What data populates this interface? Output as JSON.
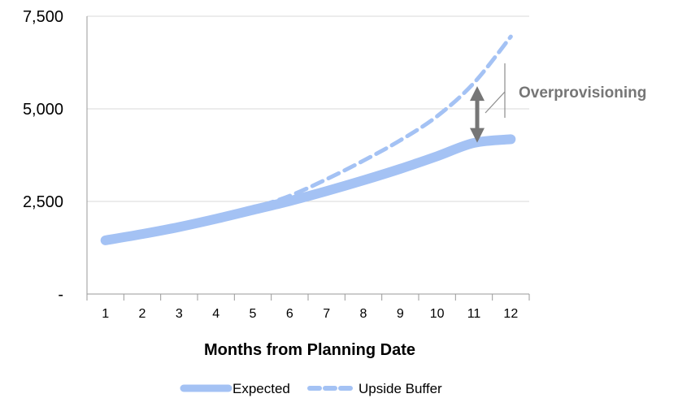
{
  "chart_data": {
    "type": "line",
    "title": "",
    "xlabel": "Months from Planning Date",
    "ylabel": "",
    "x": [
      1,
      2,
      3,
      4,
      5,
      6,
      7,
      8,
      9,
      10,
      11,
      12
    ],
    "x_tick_labels": [
      "1",
      "2",
      "3",
      "4",
      "5",
      "6",
      "7",
      "8",
      "9",
      "10",
      "11",
      "12"
    ],
    "ylim": [
      0,
      7500
    ],
    "y_ticks": [
      0,
      2500,
      5000,
      7500
    ],
    "y_tick_labels": [
      "-",
      "2,500",
      "5,000",
      "7,500"
    ],
    "grid": "horizontal",
    "legend_position": "bottom",
    "series": [
      {
        "name": "Expected",
        "style": "solid",
        "color": "#a4c2f4",
        "values": [
          1450,
          1620,
          1810,
          2030,
          2270,
          2510,
          2780,
          3070,
          3380,
          3720,
          4080,
          4180
        ]
      },
      {
        "name": "Upside Buffer",
        "style": "dashed",
        "color": "#a4c2f4",
        "values": [
          1450,
          1620,
          1810,
          2030,
          2320,
          2650,
          3100,
          3600,
          4150,
          4800,
          5700,
          6950
        ]
      }
    ],
    "annotation": {
      "text": "Overprovisioning",
      "at_x": 11,
      "from_value": 4000,
      "to_value": 5700,
      "color": "#767676"
    }
  }
}
